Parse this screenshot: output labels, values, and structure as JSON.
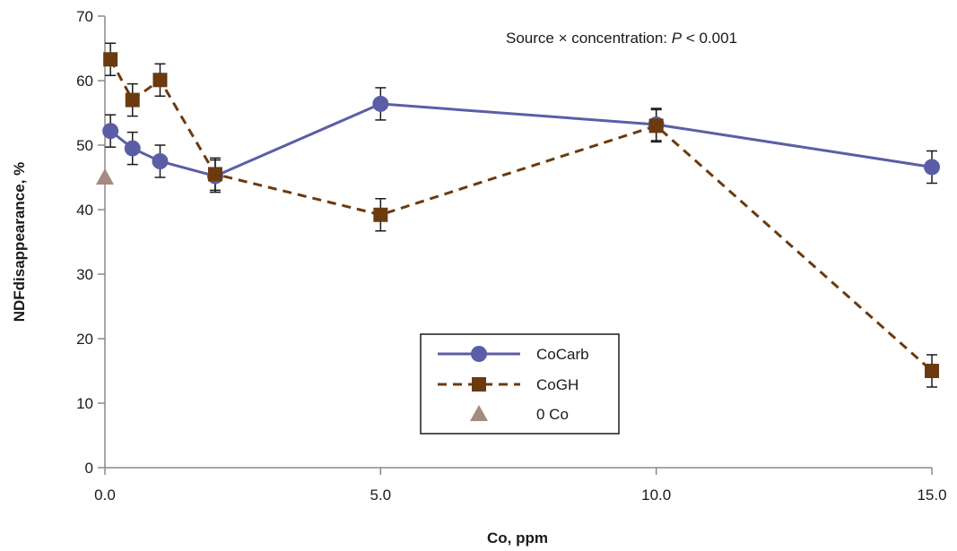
{
  "chart_data": {
    "type": "line",
    "xlabel": "Co, ppm",
    "ylabel": "NDFdisappearance, %",
    "xlim": [
      0,
      15
    ],
    "ylim": [
      0,
      70
    ],
    "xticks": [
      0,
      5,
      10,
      15
    ],
    "xtick_labels": [
      "0.0",
      "5.0",
      "10.0",
      "15.0"
    ],
    "yticks": [
      0,
      10,
      20,
      30,
      40,
      50,
      60,
      70
    ],
    "ytick_labels": [
      "0",
      "10",
      "20",
      "30",
      "40",
      "50",
      "60",
      "70"
    ],
    "grid": false,
    "legend_position": "center-bottom",
    "annotation": {
      "prefix": "Source × concentration: ",
      "italic": "P",
      "suffix": " < 0.001"
    },
    "series": [
      {
        "name": "CoCarb",
        "marker": "circle",
        "line_style": "solid",
        "color": "#5b5ea6",
        "x": [
          0.1,
          0.5,
          1.0,
          2.0,
          5.0,
          10.0,
          15.0
        ],
        "y": [
          52.2,
          49.5,
          47.5,
          45.2,
          56.4,
          53.2,
          46.6
        ],
        "error": [
          2.5,
          2.5,
          2.5,
          2.5,
          2.5,
          2.5,
          2.5
        ]
      },
      {
        "name": "CoGH",
        "marker": "square",
        "line_style": "dashed",
        "color": "#6b3a0f",
        "x": [
          0.1,
          0.5,
          1.0,
          2.0,
          5.0,
          10.0,
          15.0
        ],
        "y": [
          63.3,
          57.0,
          60.1,
          45.5,
          39.2,
          53.0,
          15.0
        ],
        "error": [
          2.5,
          2.5,
          2.5,
          2.5,
          2.5,
          2.5,
          2.5
        ]
      },
      {
        "name": "0 Co",
        "marker": "triangle",
        "line_style": "none",
        "color": "#a48a80",
        "x": [
          0.0
        ],
        "y": [
          45.0
        ]
      }
    ]
  }
}
